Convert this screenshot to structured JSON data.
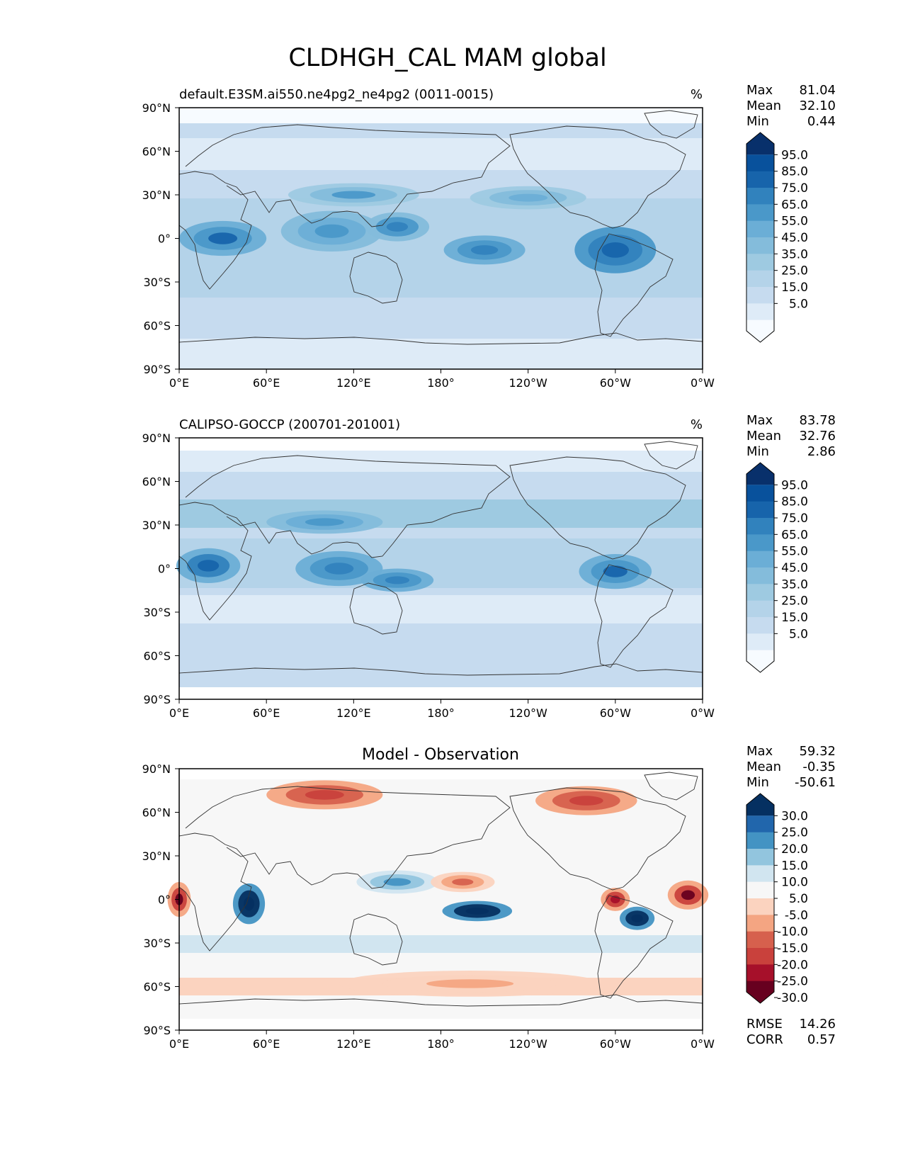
{
  "figure_title": "CLDHGH_CAL MAM global",
  "colors": {
    "blues": [
      "#f7fbff",
      "#deebf7",
      "#c6dbef",
      "#b4d3e9",
      "#9ecae1",
      "#84bcdb",
      "#6baed6",
      "#4a98c9",
      "#3182bd",
      "#1764ab",
      "#08519c",
      "#08306b"
    ],
    "diverging": [
      "#67001f",
      "#a6102a",
      "#c9413c",
      "#d6604d",
      "#f4a582",
      "#fbd3bf",
      "#f7f7f7",
      "#d1e5f0",
      "#92c5de",
      "#4393c3",
      "#2166ac",
      "#053061"
    ],
    "land_outline": "#333333"
  },
  "panels": [
    {
      "id": "test",
      "title": "default.E3SM.ai550.ne4pg2_ne4pg2 (0011-0015)",
      "units": "%",
      "stats": [
        {
          "label": "Max",
          "value": "81.04"
        },
        {
          "label": "Mean",
          "value": "32.10"
        },
        {
          "label": "Min",
          "value": "0.44"
        }
      ],
      "colorbar_labels": [
        "95.0",
        "85.0",
        "75.0",
        "65.0",
        "55.0",
        "45.0",
        "35.0",
        "25.0",
        "15.0",
        "5.0"
      ]
    },
    {
      "id": "reference",
      "title": "CALIPSO-GOCCP (200701-201001)",
      "units": "%",
      "stats": [
        {
          "label": "Max",
          "value": "83.78"
        },
        {
          "label": "Mean",
          "value": "32.76"
        },
        {
          "label": "Min",
          "value": "2.86"
        }
      ],
      "colorbar_labels": [
        "95.0",
        "85.0",
        "75.0",
        "65.0",
        "55.0",
        "45.0",
        "35.0",
        "25.0",
        "15.0",
        "5.0"
      ]
    },
    {
      "id": "diff",
      "title": "Model - Observation",
      "units": "",
      "stats": [
        {
          "label": "Max",
          "value": "59.32"
        },
        {
          "label": "Mean",
          "value": "-0.35"
        },
        {
          "label": "Min",
          "value": "-50.61"
        }
      ],
      "colorbar_labels": [
        "30.0",
        "25.0",
        "20.0",
        "15.0",
        "10.0",
        "5.0",
        "-5.0",
        "-10.0",
        "-15.0",
        "-20.0",
        "-25.0",
        "-30.0"
      ],
      "extra_stats": [
        {
          "label": "RMSE",
          "value": "14.26"
        },
        {
          "label": "CORR",
          "value": "0.57"
        }
      ]
    }
  ],
  "chart_data": [
    {
      "type": "heatmap",
      "title": "default.E3SM.ai550.ne4pg2_ne4pg2 (0011-0015)",
      "units": "%",
      "xticks": [
        "0°E",
        "60°E",
        "120°E",
        "180°",
        "120°W",
        "60°W",
        "0°W"
      ],
      "yticks": [
        "90°N",
        "60°N",
        "30°N",
        "0°",
        "30°S",
        "60°S",
        "90°S"
      ],
      "xlim": [
        0,
        360
      ],
      "ylim": [
        -90,
        90
      ],
      "levels": [
        5,
        15,
        25,
        35,
        45,
        55,
        65,
        75,
        85,
        95
      ],
      "features": [
        {
          "lon": 30,
          "lat": 0,
          "value": 75,
          "rlon": 30,
          "rlat": 12
        },
        {
          "lon": 105,
          "lat": 5,
          "value": 60,
          "rlon": 35,
          "rlat": 14
        },
        {
          "lon": 150,
          "lat": 8,
          "value": 68,
          "rlon": 22,
          "rlat": 10
        },
        {
          "lon": 210,
          "lat": -8,
          "value": 72,
          "rlon": 28,
          "rlat": 10
        },
        {
          "lon": 300,
          "lat": -8,
          "value": 80,
          "rlon": 28,
          "rlat": 16
        },
        {
          "lon": 120,
          "lat": 30,
          "value": 55,
          "rlon": 45,
          "rlat": 8
        },
        {
          "lon": 240,
          "lat": 28,
          "value": 52,
          "rlon": 40,
          "rlat": 8
        }
      ]
    },
    {
      "type": "heatmap",
      "title": "CALIPSO-GOCCP (200701-201001)",
      "units": "%",
      "xticks": [
        "0°E",
        "60°E",
        "120°E",
        "180°",
        "120°W",
        "60°W",
        "0°W"
      ],
      "yticks": [
        "90°N",
        "60°N",
        "30°N",
        "0°",
        "30°S",
        "60°S",
        "90°S"
      ],
      "xlim": [
        0,
        360
      ],
      "ylim": [
        -90,
        90
      ],
      "levels": [
        5,
        15,
        25,
        35,
        45,
        55,
        65,
        75,
        85,
        95
      ],
      "data_lat_range": [
        -82,
        82
      ],
      "features": [
        {
          "lon": 20,
          "lat": 2,
          "value": 78,
          "rlon": 22,
          "rlat": 12
        },
        {
          "lon": 110,
          "lat": 0,
          "value": 72,
          "rlon": 30,
          "rlat": 12
        },
        {
          "lon": 150,
          "lat": -8,
          "value": 70,
          "rlon": 25,
          "rlat": 8
        },
        {
          "lon": 300,
          "lat": -2,
          "value": 75,
          "rlon": 25,
          "rlat": 12
        },
        {
          "lon": 100,
          "lat": 32,
          "value": 60,
          "rlon": 40,
          "rlat": 8
        }
      ]
    },
    {
      "type": "heatmap",
      "title": "Model - Observation",
      "units": "",
      "xticks": [
        "0°E",
        "60°E",
        "120°E",
        "180°",
        "120°W",
        "60°W",
        "0°W"
      ],
      "yticks": [
        "90°N",
        "60°N",
        "30°N",
        "0°",
        "30°S",
        "60°S",
        "90°S"
      ],
      "xlim": [
        0,
        360
      ],
      "ylim": [
        -90,
        90
      ],
      "levels": [
        -30,
        -25,
        -20,
        -15,
        -10,
        -5,
        5,
        10,
        15,
        20,
        25,
        30
      ],
      "data_lat_range": [
        -82,
        82
      ],
      "rmse": 14.26,
      "corr": 0.57,
      "features": [
        {
          "lon": 48,
          "lat": -3,
          "value": 40,
          "rlon": 11,
          "rlat": 14
        },
        {
          "lon": 205,
          "lat": -8,
          "value": 38,
          "rlon": 24,
          "rlat": 7
        },
        {
          "lon": 315,
          "lat": -13,
          "value": 35,
          "rlon": 12,
          "rlat": 8
        },
        {
          "lon": 150,
          "lat": 12,
          "value": 18,
          "rlon": 28,
          "rlat": 8
        },
        {
          "lon": 0,
          "lat": 0,
          "value": -32,
          "rlon": 8,
          "rlat": 12
        },
        {
          "lon": 350,
          "lat": 3,
          "value": -32,
          "rlon": 14,
          "rlat": 10
        },
        {
          "lon": 300,
          "lat": 0,
          "value": -28,
          "rlon": 10,
          "rlat": 8
        },
        {
          "lon": 100,
          "lat": 72,
          "value": -25,
          "rlon": 40,
          "rlat": 10
        },
        {
          "lon": 280,
          "lat": 68,
          "value": -25,
          "rlon": 35,
          "rlat": 10
        },
        {
          "lon": 195,
          "lat": 12,
          "value": -20,
          "rlon": 22,
          "rlat": 7
        },
        {
          "lon": 200,
          "lat": -58,
          "value": -12,
          "rlon": 90,
          "rlat": 9
        }
      ]
    }
  ]
}
